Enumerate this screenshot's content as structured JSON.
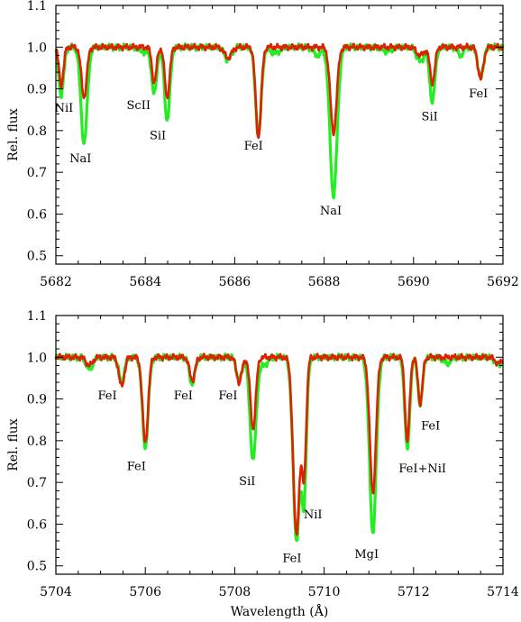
{
  "chart_data": [
    {
      "type": "line",
      "xlabel": "",
      "ylabel": "Rel. flux",
      "xlim": [
        5682,
        5692
      ],
      "ylim": [
        0.48,
        1.1
      ],
      "xticks": [
        5682,
        5684,
        5686,
        5688,
        5690,
        5692
      ],
      "yticks": [
        0.5,
        0.6,
        0.7,
        0.8,
        0.9,
        1.0,
        1.1
      ],
      "xtick_labels": [
        "5682",
        "5684",
        "5686",
        "5688",
        "5690",
        "5692"
      ],
      "ytick_labels": [
        "0.5",
        "0.6",
        "0.7",
        "0.8",
        "0.9",
        "1.0",
        "1.1"
      ],
      "grid": false,
      "series": [
        {
          "color": "#22ee22",
          "continuum": 1.0,
          "lines": [
            {
              "x": 5682.12,
              "depth": 0.115,
              "width": 0.055
            },
            {
              "x": 5682.63,
              "depth": 0.23,
              "width": 0.07
            },
            {
              "x": 5684.2,
              "depth": 0.11,
              "width": 0.055
            },
            {
              "x": 5684.49,
              "depth": 0.175,
              "width": 0.06
            },
            {
              "x": 5686.53,
              "depth": 0.21,
              "width": 0.065
            },
            {
              "x": 5688.21,
              "depth": 0.355,
              "width": 0.08
            },
            {
              "x": 5690.42,
              "depth": 0.13,
              "width": 0.06
            },
            {
              "x": 5691.5,
              "depth": 0.075,
              "width": 0.06
            },
            {
              "x": 5684.0,
              "depth": 0.012,
              "width": 0.12
            },
            {
              "x": 5685.85,
              "depth": 0.03,
              "width": 0.08
            },
            {
              "x": 5686.9,
              "depth": 0.015,
              "width": 0.1
            },
            {
              "x": 5687.85,
              "depth": 0.02,
              "width": 0.08
            },
            {
              "x": 5689.4,
              "depth": 0.01,
              "width": 0.1
            },
            {
              "x": 5690.15,
              "depth": 0.035,
              "width": 0.08
            },
            {
              "x": 5691.05,
              "depth": 0.02,
              "width": 0.06
            }
          ]
        },
        {
          "color": "#dd2200",
          "continuum": 1.0,
          "lines": [
            {
              "x": 5682.12,
              "depth": 0.09,
              "width": 0.05
            },
            {
              "x": 5682.63,
              "depth": 0.12,
              "width": 0.06
            },
            {
              "x": 5684.2,
              "depth": 0.085,
              "width": 0.05
            },
            {
              "x": 5684.49,
              "depth": 0.12,
              "width": 0.055
            },
            {
              "x": 5686.53,
              "depth": 0.215,
              "width": 0.06
            },
            {
              "x": 5688.21,
              "depth": 0.205,
              "width": 0.07
            },
            {
              "x": 5690.42,
              "depth": 0.085,
              "width": 0.055
            },
            {
              "x": 5691.5,
              "depth": 0.075,
              "width": 0.06
            },
            {
              "x": 5685.85,
              "depth": 0.025,
              "width": 0.08
            },
            {
              "x": 5690.15,
              "depth": 0.02,
              "width": 0.08
            }
          ]
        }
      ],
      "annotations": [
        {
          "text": "NiI",
          "x": 5682.18,
          "y": 0.856
        },
        {
          "text": "NaI",
          "x": 5682.55,
          "y": 0.735
        },
        {
          "text": "ScII",
          "x": 5683.85,
          "y": 0.862
        },
        {
          "text": "SiI",
          "x": 5684.28,
          "y": 0.79
        },
        {
          "text": "FeI",
          "x": 5686.42,
          "y": 0.765
        },
        {
          "text": "NaI",
          "x": 5688.15,
          "y": 0.61
        },
        {
          "text": "SiI",
          "x": 5690.36,
          "y": 0.835
        },
        {
          "text": "FeI",
          "x": 5691.45,
          "y": 0.89
        }
      ]
    },
    {
      "type": "line",
      "xlabel": "Wavelength (Å)",
      "ylabel": "Rel. flux",
      "xlim": [
        5704,
        5714
      ],
      "ylim": [
        0.48,
        1.1
      ],
      "xticks": [
        5704,
        5706,
        5708,
        5710,
        5712,
        5714
      ],
      "yticks": [
        0.5,
        0.6,
        0.7,
        0.8,
        0.9,
        1.0,
        1.1
      ],
      "xtick_labels": [
        "5704",
        "5706",
        "5708",
        "5710",
        "5712",
        "5714"
      ],
      "ytick_labels": [
        "0.5",
        "0.6",
        "0.7",
        "0.8",
        "0.9",
        "1.0",
        "1.1"
      ],
      "grid": false,
      "series": [
        {
          "color": "#22ee22",
          "continuum": 1.0,
          "lines": [
            {
              "x": 5704.75,
              "depth": 0.03,
              "width": 0.07
            },
            {
              "x": 5705.47,
              "depth": 0.06,
              "width": 0.06
            },
            {
              "x": 5706.0,
              "depth": 0.215,
              "width": 0.065
            },
            {
              "x": 5707.05,
              "depth": 0.065,
              "width": 0.06
            },
            {
              "x": 5708.1,
              "depth": 0.055,
              "width": 0.06
            },
            {
              "x": 5708.41,
              "depth": 0.245,
              "width": 0.07
            },
            {
              "x": 5709.38,
              "depth": 0.435,
              "width": 0.075
            },
            {
              "x": 5709.55,
              "depth": 0.325,
              "width": 0.055
            },
            {
              "x": 5711.09,
              "depth": 0.42,
              "width": 0.075
            },
            {
              "x": 5711.86,
              "depth": 0.22,
              "width": 0.055
            },
            {
              "x": 5712.15,
              "depth": 0.115,
              "width": 0.05
            },
            {
              "x": 5708.65,
              "depth": 0.02,
              "width": 0.08
            },
            {
              "x": 5713.9,
              "depth": 0.02,
              "width": 0.07
            },
            {
              "x": 5712.75,
              "depth": 0.015,
              "width": 0.08
            }
          ]
        },
        {
          "color": "#dd2200",
          "continuum": 1.0,
          "lines": [
            {
              "x": 5704.75,
              "depth": 0.02,
              "width": 0.07
            },
            {
              "x": 5705.47,
              "depth": 0.07,
              "width": 0.06
            },
            {
              "x": 5706.0,
              "depth": 0.205,
              "width": 0.062
            },
            {
              "x": 5707.05,
              "depth": 0.055,
              "width": 0.06
            },
            {
              "x": 5708.1,
              "depth": 0.06,
              "width": 0.06
            },
            {
              "x": 5708.41,
              "depth": 0.17,
              "width": 0.06
            },
            {
              "x": 5709.38,
              "depth": 0.425,
              "width": 0.072
            },
            {
              "x": 5709.55,
              "depth": 0.27,
              "width": 0.05
            },
            {
              "x": 5711.09,
              "depth": 0.325,
              "width": 0.068
            },
            {
              "x": 5711.86,
              "depth": 0.2,
              "width": 0.05
            },
            {
              "x": 5712.15,
              "depth": 0.11,
              "width": 0.05
            },
            {
              "x": 5713.9,
              "depth": 0.015,
              "width": 0.07
            }
          ]
        }
      ],
      "annotations": [
        {
          "text": "FeI",
          "x": 5705.15,
          "y": 0.91
        },
        {
          "text": "FeI",
          "x": 5705.8,
          "y": 0.74
        },
        {
          "text": "FeI",
          "x": 5706.85,
          "y": 0.91
        },
        {
          "text": "FeI",
          "x": 5707.85,
          "y": 0.91
        },
        {
          "text": "SiI",
          "x": 5708.28,
          "y": 0.705
        },
        {
          "text": "FeI",
          "x": 5709.28,
          "y": 0.52
        },
        {
          "text": "NiI",
          "x": 5709.75,
          "y": 0.625
        },
        {
          "text": "MgI",
          "x": 5710.95,
          "y": 0.53
        },
        {
          "text": "FeI+NiI",
          "x": 5712.2,
          "y": 0.735
        },
        {
          "text": "FeI",
          "x": 5712.38,
          "y": 0.838
        }
      ]
    }
  ]
}
